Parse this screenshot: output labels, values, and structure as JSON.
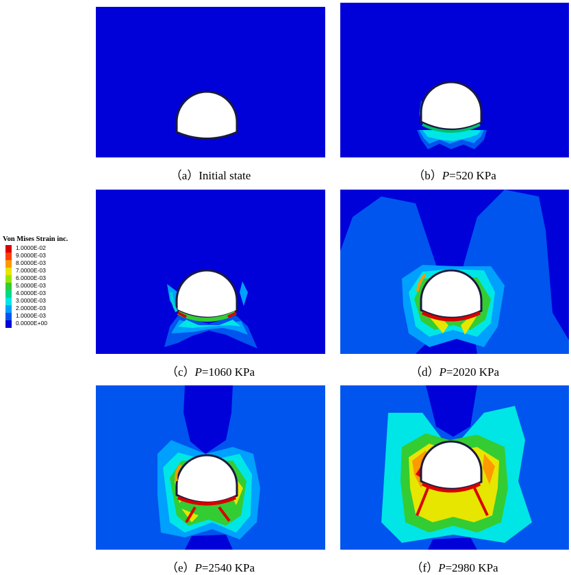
{
  "legend": {
    "title": "Von Mises Strain inc.",
    "entries": [
      {
        "label": "1.0000E-02",
        "color": "#d90000"
      },
      {
        "label": "9.0000E-03",
        "color": "#ff4000"
      },
      {
        "label": "8.0000E-03",
        "color": "#ff9900"
      },
      {
        "label": "7.0000E-03",
        "color": "#e6e600"
      },
      {
        "label": "6.0000E-03",
        "color": "#99e600"
      },
      {
        "label": "5.0000E-03",
        "color": "#33cc33"
      },
      {
        "label": "4.0000E-03",
        "color": "#00d98c"
      },
      {
        "label": "3.0000E-03",
        "color": "#00e6e6"
      },
      {
        "label": "2.0000E-03",
        "color": "#00a0ff"
      },
      {
        "label": "1.0000E-03",
        "color": "#0055ee"
      },
      {
        "label": "0.0000E+00",
        "color": "#0000d9"
      }
    ]
  },
  "panels": [
    {
      "id": "a",
      "caption_prefix": "（a）",
      "caption_p": "",
      "caption_text": "Initial state"
    },
    {
      "id": "b",
      "caption_prefix": "（b）",
      "caption_p": "P",
      "caption_text": "=520 KPa"
    },
    {
      "id": "c",
      "caption_prefix": "（c）",
      "caption_p": "P",
      "caption_text": "=1060 KPa"
    },
    {
      "id": "d",
      "caption_prefix": "（d）",
      "caption_p": "P",
      "caption_text": "=2020 KPa"
    },
    {
      "id": "e",
      "caption_prefix": "（e）",
      "caption_p": "P",
      "caption_text": "=2540 KPa"
    },
    {
      "id": "f",
      "caption_prefix": "（f）",
      "caption_p": "P",
      "caption_text": "=2980 KPa"
    }
  ]
}
